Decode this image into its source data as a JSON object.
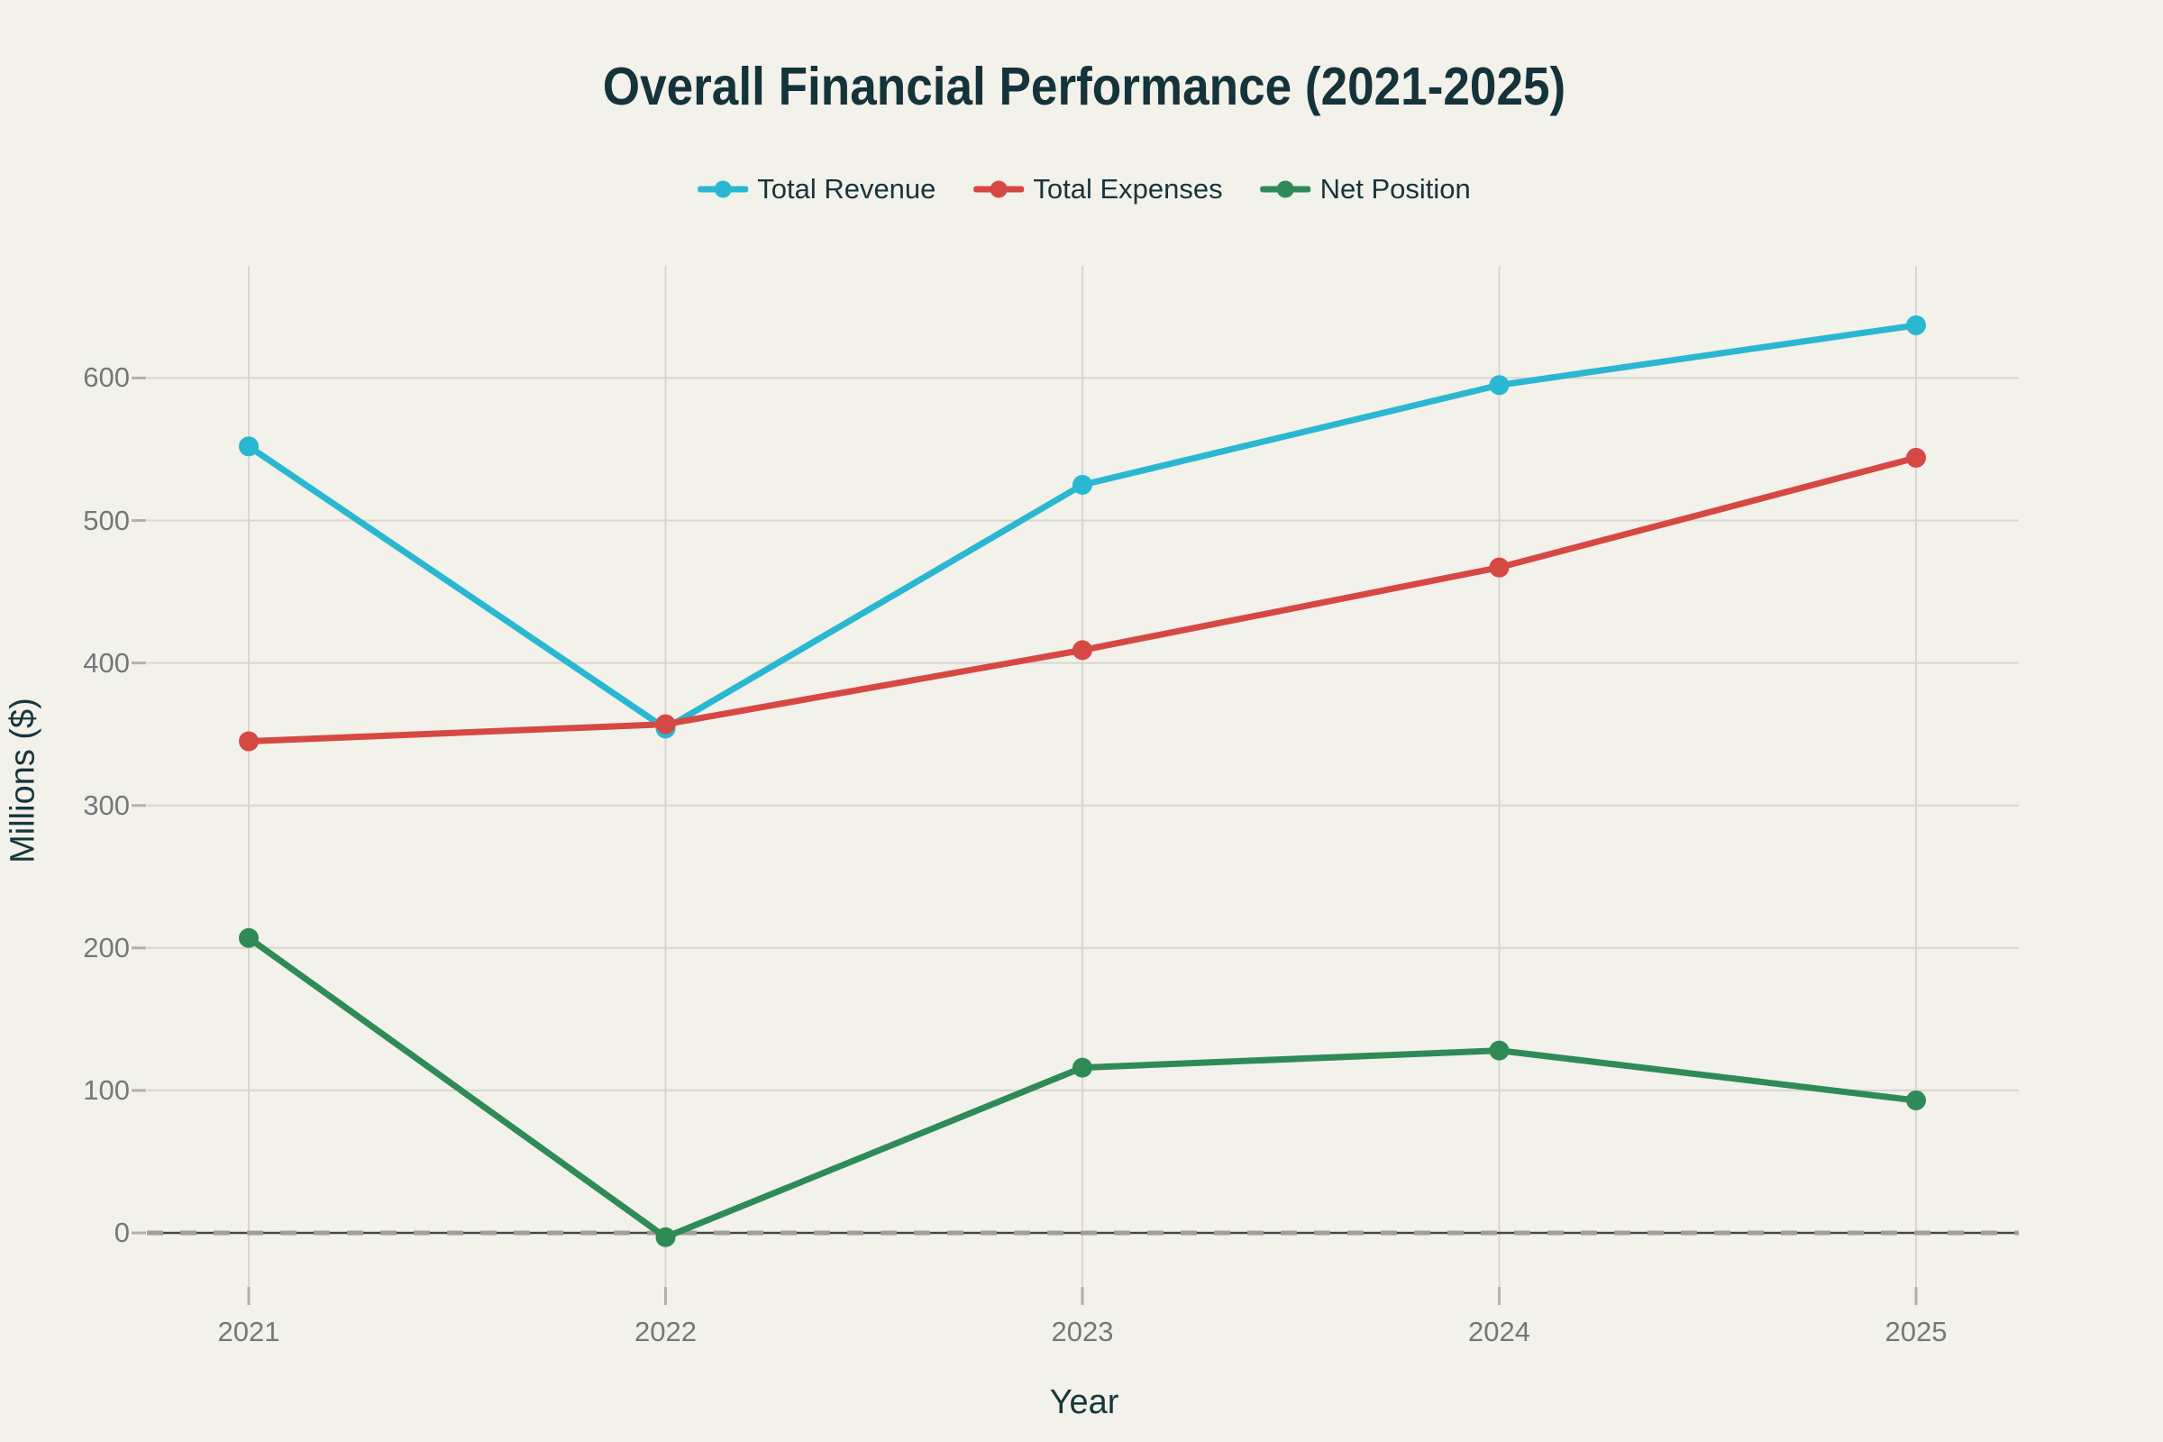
{
  "page": {
    "background": "#f2f1ea"
  },
  "chart_data": {
    "type": "line",
    "title": "Overall Financial Performance (2021-2025)",
    "xlabel": "Year",
    "ylabel": "Millions ($)",
    "categories": [
      "2021",
      "2022",
      "2023",
      "2024",
      "2025"
    ],
    "series": [
      {
        "name": "Total Revenue",
        "color": "#29b7d2",
        "values": [
          552,
          354,
          525,
          595,
          637
        ]
      },
      {
        "name": "Total Expenses",
        "color": "#d64843",
        "values": [
          345,
          357,
          409,
          467,
          544
        ]
      },
      {
        "name": "Net Position",
        "color": "#2f8b55",
        "values": [
          207,
          -3,
          116,
          128,
          93
        ]
      }
    ],
    "yticks": [
      0,
      100,
      200,
      300,
      400,
      500,
      600
    ],
    "ylim": [
      -40,
      680
    ],
    "grid": true,
    "legend_position": "top",
    "zero_line": true
  },
  "colors": {
    "background": "#f2f1ea",
    "title_text": "#14333b",
    "axis_title_text": "#17363e",
    "tick_text": "#75787a",
    "gridline": "#d9d6ce",
    "tick_mark": "#b3b0a9",
    "zero_line_dark": "#45474a",
    "zero_line_dash": "#a09e97"
  }
}
